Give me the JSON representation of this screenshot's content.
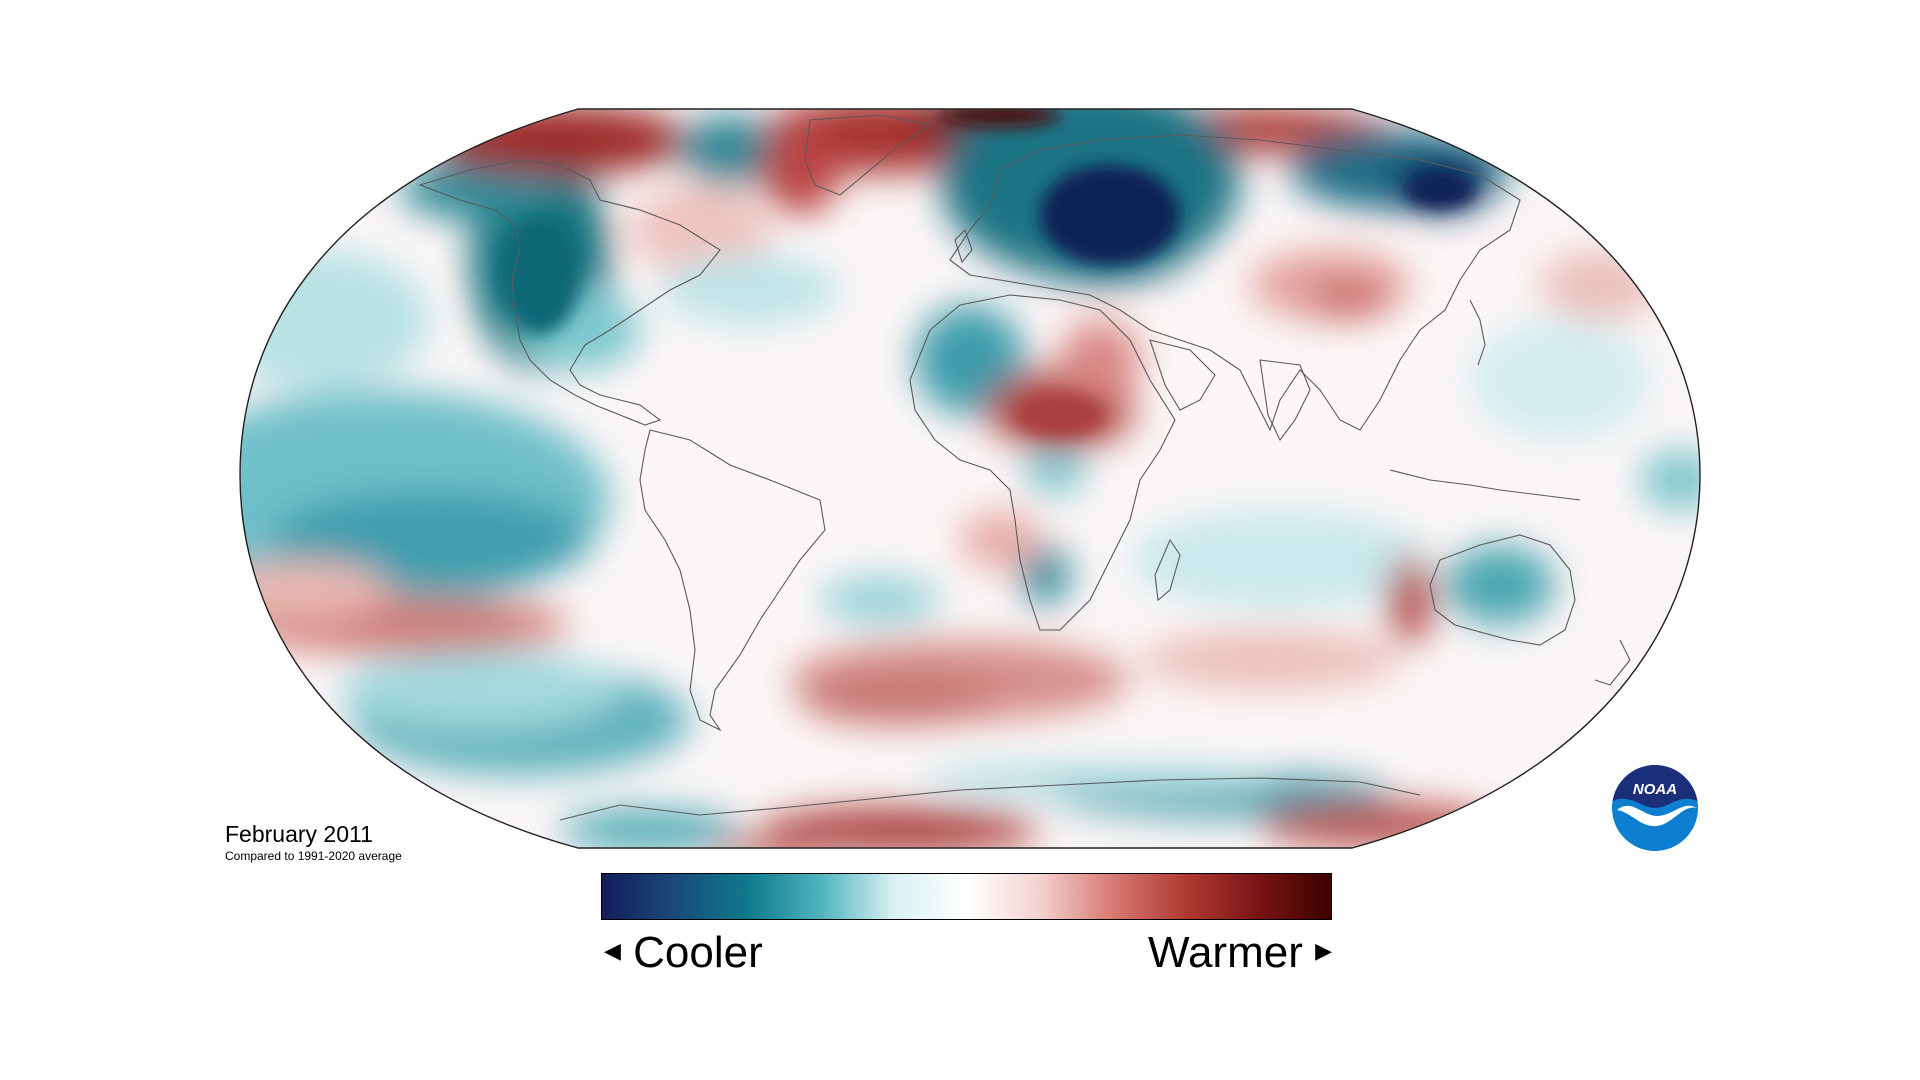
{
  "caption": {
    "title": "February 2011",
    "subtitle": "Compared to 1991-2020 average"
  },
  "legend": {
    "left_label": "Cooler",
    "right_label": "Warmer",
    "left_arrow_icon": "triangle-left-icon",
    "right_arrow_icon": "triangle-right-icon",
    "color_stops": [
      "#121d5b",
      "#1b4a7a",
      "#0e7a8c",
      "#4fb3bf",
      "#d9f1f2",
      "#ffffff",
      "#f4d2cf",
      "#d77a72",
      "#b03a33",
      "#7a1414",
      "#3d0000"
    ]
  },
  "logo": {
    "text": "NOAA",
    "colors": {
      "top": "#1b2e7a",
      "bottom": "#0d7fd0",
      "bird": "#ffffff"
    }
  },
  "map": {
    "projection": "Robinson",
    "anomaly_colors": {
      "strong_cold": "#0f2457",
      "cold": "#1c7a8e",
      "cool": "#7ccad2",
      "neutral": "#ffffff",
      "warm": "#e7a39c",
      "hot": "#b53a35",
      "strong_hot": "#6e0d0d"
    }
  }
}
